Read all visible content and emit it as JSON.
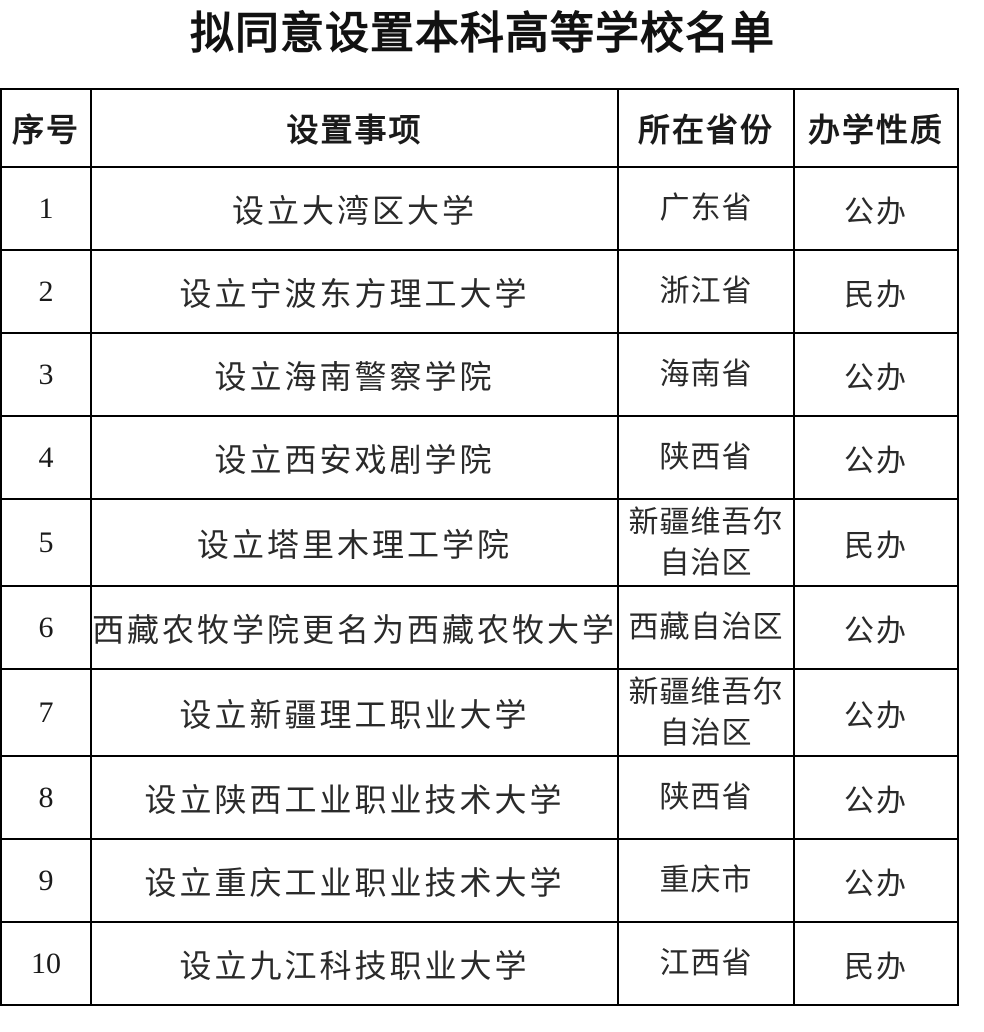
{
  "page": {
    "title": "拟同意设置本科高等学校名单"
  },
  "table": {
    "headers": [
      "序号",
      "设置事项",
      "所在省份",
      "办学性质"
    ],
    "rows": [
      {
        "no": "1",
        "item": "设立大湾区大学",
        "province": "广东省",
        "type": "公办"
      },
      {
        "no": "2",
        "item": "设立宁波东方理工大学",
        "province": "浙江省",
        "type": "民办"
      },
      {
        "no": "3",
        "item": "设立海南警察学院",
        "province": "海南省",
        "type": "公办"
      },
      {
        "no": "4",
        "item": "设立西安戏剧学院",
        "province": "陕西省",
        "type": "公办"
      },
      {
        "no": "5",
        "item": "设立塔里木理工学院",
        "province": "新疆维吾尔自治区",
        "type": "民办"
      },
      {
        "no": "6",
        "item": "西藏农牧学院更名为西藏农牧大学",
        "province": "西藏自治区",
        "type": "公办"
      },
      {
        "no": "7",
        "item": "设立新疆理工职业大学",
        "province": "新疆维吾尔自治区",
        "type": "公办"
      },
      {
        "no": "8",
        "item": "设立陕西工业职业技术大学",
        "province": "陕西省",
        "type": "公办"
      },
      {
        "no": "9",
        "item": "设立重庆工业职业技术大学",
        "province": "重庆市",
        "type": "公办"
      },
      {
        "no": "10",
        "item": "设立九江科技职业大学",
        "province": "江西省",
        "type": "民办"
      }
    ]
  }
}
